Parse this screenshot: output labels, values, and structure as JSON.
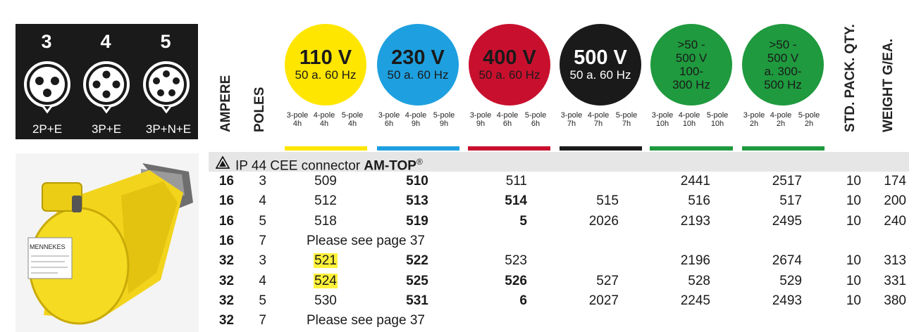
{
  "legend": {
    "poles": [
      {
        "number": "3",
        "label": "2P+E"
      },
      {
        "number": "4",
        "label": "3P+E"
      },
      {
        "number": "5",
        "label": "3P+N+E"
      }
    ]
  },
  "headers": {
    "ampere": "AMPERE",
    "poles": "POLES",
    "std_pack": "STD. PACK. QTY.",
    "weight": "WEIGHT G/EA."
  },
  "voltages": [
    {
      "line1": "110 V",
      "line2": "50 a. 60 Hz",
      "color": "#ffe600",
      "text_color": "#1a1a1a",
      "poles": [
        "3-pole",
        "4-pole",
        "5-pole"
      ],
      "hours": [
        "4h",
        "4h",
        "4h"
      ]
    },
    {
      "line1": "230 V",
      "line2": "50 a. 60 Hz",
      "color": "#1ea0e0",
      "text_color": "#1a1a1a",
      "poles": [
        "3-pole",
        "4-pole",
        "5-pole"
      ],
      "hours": [
        "6h",
        "9h",
        "9h"
      ]
    },
    {
      "line1": "400 V",
      "line2": "50 a. 60 Hz",
      "color": "#c8102e",
      "text_color": "#1a1a1a",
      "poles": [
        "3-pole",
        "4-pole",
        "5-pole"
      ],
      "hours": [
        "9h",
        "6h",
        "6h"
      ]
    },
    {
      "line1": "500 V",
      "line2": "50 a. 60 Hz",
      "color": "#1a1a1a",
      "text_color": "#ffffff",
      "poles": [
        "3-pole",
        "4-pole",
        "5-pole"
      ],
      "hours": [
        "7h",
        "7h",
        "7h"
      ]
    },
    {
      "line1": ">50 -",
      "line2": "500 V",
      "line3": "100-",
      "line4": "300 Hz",
      "color": "#1f9a3e",
      "text_color": "#1a1a1a",
      "poles": [
        "3-pole",
        "4-pole",
        "5-pole"
      ],
      "hours": [
        "10h",
        "10h",
        "10h"
      ]
    },
    {
      "line1": ">50 -",
      "line2": "500 V",
      "line3": "a. 300-",
      "line4": "500 Hz",
      "color": "#1f9a3e",
      "text_color": "#1a1a1a",
      "poles": [
        "3-pole",
        "4-pole",
        "5-pole"
      ],
      "hours": [
        "2h",
        "2h",
        "2h"
      ]
    }
  ],
  "section": {
    "warning_icon": "warning-triangle-icon",
    "title": "IP 44 CEE connector ",
    "title_bold": "AM-TOP",
    "reg": "®"
  },
  "rows": [
    {
      "ampere": "16",
      "poles": "3",
      "v110": "509",
      "v230": "510",
      "v400": "511",
      "v500": "",
      "g1": "2441",
      "g2": "2517",
      "pack": "10",
      "weight": "174"
    },
    {
      "ampere": "16",
      "poles": "4",
      "v110": "512",
      "v230": "513",
      "v400": "514",
      "v500": "515",
      "g1": "516",
      "g2": "517",
      "pack": "10",
      "weight": "200"
    },
    {
      "ampere": "16",
      "poles": "5",
      "v110": "518",
      "v230": "519",
      "v400": "5",
      "v500": "2026",
      "g1": "2193",
      "g2": "2495",
      "pack": "10",
      "weight": "240"
    },
    {
      "ampere": "16",
      "poles": "7",
      "note": "Please see page 37"
    },
    {
      "ampere": "32",
      "poles": "3",
      "v110": "521",
      "v230": "522",
      "v400": "523",
      "v500": "",
      "g1": "2196",
      "g2": "2674",
      "pack": "10",
      "weight": "313"
    },
    {
      "ampere": "32",
      "poles": "4",
      "v110": "524",
      "v230": "525",
      "v400": "526",
      "v500": "527",
      "g1": "528",
      "g2": "529",
      "pack": "10",
      "weight": "331"
    },
    {
      "ampere": "32",
      "poles": "5",
      "v110": "530",
      "v230": "531",
      "v400": "6",
      "v500": "2027",
      "g1": "2245",
      "g2": "2493",
      "pack": "10",
      "weight": "380"
    },
    {
      "ampere": "32",
      "poles": "7",
      "note": "Please see page 37"
    }
  ],
  "product": {
    "brand": "MENNEKES"
  }
}
